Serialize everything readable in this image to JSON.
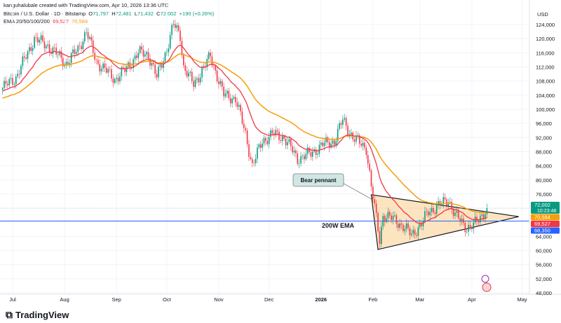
{
  "credit": "kanguhalubale created with TradingView.com, Apr 10, 2026 13:36 UTC",
  "symbol": {
    "name": "Bitcoin / U.S. Dollar · 1D · Bitstamp",
    "o_label": "O",
    "o": "71,797",
    "h_label": "H",
    "h": "72,481",
    "l_label": "L",
    "l": "71,432",
    "c_label": "C",
    "c": "72,002",
    "change": "+190 (+0.26%)"
  },
  "ema": {
    "label": "EMA 20/50/100/200",
    "ema20": "69,527",
    "ema50": "70,584"
  },
  "currency": "USD",
  "logo": "TradingView",
  "colors": {
    "up": "#089981",
    "down": "#f23645",
    "ema20": "#f23645",
    "ema50": "#f59e0b",
    "ema200w": "#2962ff",
    "pennant_fill": "#fde4c0"
  },
  "price_tags": [
    {
      "value": "72,002",
      "sub": "10:23:48",
      "color": "#089981"
    },
    {
      "value": "70,584",
      "color": "#f59e0b"
    },
    {
      "value": "69,527",
      "color": "#f23645"
    },
    {
      "value": "68,350",
      "color": "#2962ff"
    }
  ],
  "annotations": {
    "pennant": "Bear pennant",
    "ema200w": "200W EMA"
  },
  "chart_data": {
    "type": "candlestick",
    "ylim": [
      46000,
      128000
    ],
    "yticks": [
      124000,
      120000,
      116000,
      112000,
      108000,
      104000,
      100000,
      96000,
      92000,
      88000,
      84000,
      80000,
      76000,
      72000,
      68000,
      64000,
      60000,
      56000,
      52000,
      48000
    ],
    "ytick_labels": [
      "124,000",
      "120,000",
      "116,000",
      "112,000",
      "108,000",
      "104,000",
      "100,000",
      "96,000",
      "92,000",
      "88,000",
      "84,000",
      "80,000",
      "76,000",
      "72,000",
      "68,000",
      "64,000",
      "60,000",
      "56,000",
      "52,000",
      "48,000"
    ],
    "xticks": [
      {
        "date": "2025-07-01",
        "label": "Jul"
      },
      {
        "date": "2025-08-01",
        "label": "Aug"
      },
      {
        "date": "2025-09-01",
        "label": "Sep"
      },
      {
        "date": "2025-10-01",
        "label": "Oct"
      },
      {
        "date": "2025-11-01",
        "label": "Nov"
      },
      {
        "date": "2025-12-01",
        "label": "Dec"
      },
      {
        "date": "2026-01-01",
        "label": "2026"
      },
      {
        "date": "2026-02-01",
        "label": "Feb"
      },
      {
        "date": "2026-03-01",
        "label": "Mar"
      },
      {
        "date": "2026-04-01",
        "label": "Apr"
      },
      {
        "date": "2026-05-01",
        "label": "May"
      }
    ],
    "xlim": [
      "2025-06-25",
      "2026-05-10"
    ],
    "close_anchors": [
      [
        "2025-06-25",
        106000
      ],
      [
        "2025-07-03",
        109000
      ],
      [
        "2025-07-10",
        116000
      ],
      [
        "2025-07-14",
        120000
      ],
      [
        "2025-07-22",
        118000
      ],
      [
        "2025-08-02",
        113000
      ],
      [
        "2025-08-09",
        117000
      ],
      [
        "2025-08-14",
        122000
      ],
      [
        "2025-08-20",
        113500
      ],
      [
        "2025-08-31",
        108500
      ],
      [
        "2025-09-06",
        111000
      ],
      [
        "2025-09-14",
        116000
      ],
      [
        "2025-09-20",
        115500
      ],
      [
        "2025-09-25",
        109000
      ],
      [
        "2025-10-01",
        117000
      ],
      [
        "2025-10-05",
        124000
      ],
      [
        "2025-10-09",
        121000
      ],
      [
        "2025-10-11",
        112000
      ],
      [
        "2025-10-17",
        107000
      ],
      [
        "2025-10-27",
        115000
      ],
      [
        "2025-11-04",
        104000
      ],
      [
        "2025-11-11",
        103000
      ],
      [
        "2025-11-17",
        93000
      ],
      [
        "2025-11-21",
        84000
      ],
      [
        "2025-11-27",
        91000
      ],
      [
        "2025-12-03",
        93000
      ],
      [
        "2025-12-10",
        92000
      ],
      [
        "2025-12-18",
        86000
      ],
      [
        "2025-12-26",
        87500
      ],
      [
        "2026-01-02",
        90000
      ],
      [
        "2026-01-09",
        91000
      ],
      [
        "2026-01-14",
        97000
      ],
      [
        "2026-01-20",
        92000
      ],
      [
        "2026-01-28",
        89000
      ],
      [
        "2026-01-31",
        78000
      ],
      [
        "2026-02-05",
        63000
      ],
      [
        "2026-02-07",
        70000
      ],
      [
        "2026-02-15",
        68500
      ],
      [
        "2026-02-24",
        64500
      ],
      [
        "2026-03-02",
        67500
      ],
      [
        "2026-03-06",
        71000
      ],
      [
        "2026-03-15",
        73500
      ],
      [
        "2026-03-18",
        74500
      ],
      [
        "2026-03-22",
        70000
      ],
      [
        "2026-03-29",
        66500
      ],
      [
        "2026-04-02",
        67000
      ],
      [
        "2026-04-06",
        69500
      ],
      [
        "2026-04-10",
        72002
      ]
    ],
    "ema200w": 68350,
    "pennant": [
      [
        "2026-01-31",
        75800
      ],
      [
        "2026-02-04",
        60300
      ],
      [
        "2026-04-29",
        69600
      ]
    ],
    "current_price": 72002
  }
}
